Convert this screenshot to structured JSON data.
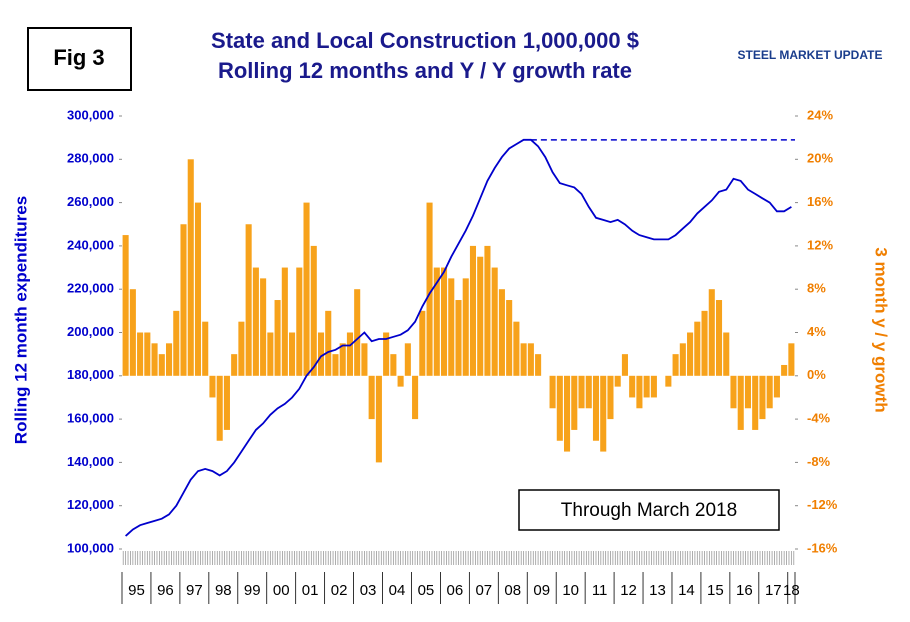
{
  "chart_data": {
    "type": "bar_line",
    "fig_label": "Fig 3",
    "title": "State and Local Construction 1,000,000 $",
    "subtitle": "Rolling 12 months and Y / Y growth rate",
    "logo": "STEEL MARKET UPDATE",
    "annotation": "Through March 2018",
    "y_label": "Rolling 12 month expenditures",
    "y2_label": "3 month y / y growth",
    "categories": [
      "95",
      null,
      null,
      null,
      "96",
      null,
      null,
      null,
      "97",
      null,
      null,
      null,
      "98",
      null,
      null,
      null,
      "99",
      null,
      null,
      null,
      "00",
      null,
      null,
      null,
      "01",
      null,
      null,
      null,
      "02",
      null,
      null,
      null,
      "03",
      null,
      null,
      null,
      "04",
      null,
      null,
      null,
      "05",
      null,
      null,
      null,
      "06",
      null,
      null,
      null,
      "07",
      null,
      null,
      null,
      "08",
      null,
      null,
      null,
      "09",
      null,
      null,
      null,
      "10",
      null,
      null,
      null,
      "11",
      null,
      null,
      null,
      "12",
      null,
      null,
      null,
      "13",
      null,
      null,
      null,
      "14",
      null,
      null,
      null,
      "15",
      null,
      null,
      null,
      "16",
      null,
      null,
      null,
      "17",
      null,
      null,
      null,
      "18"
    ],
    "series": [
      {
        "type": "bar",
        "axis": "y2",
        "color": "#f7a21b",
        "values": [
          13,
          8,
          4,
          4,
          3,
          2,
          3,
          6,
          14,
          20,
          16,
          5,
          -2,
          -6,
          -5,
          2,
          5,
          14,
          10,
          9,
          4,
          7,
          10,
          4,
          10,
          16,
          12,
          4,
          6,
          2,
          3,
          4,
          8,
          3,
          -4,
          -8,
          4,
          2,
          -1,
          3,
          -4,
          6,
          16,
          10,
          10,
          9,
          7,
          9,
          12,
          11,
          12,
          10,
          8,
          7,
          5,
          3,
          3,
          2,
          0,
          -3,
          -6,
          -7,
          -5,
          -3,
          -3,
          -6,
          -7,
          -4,
          -1,
          2,
          -2,
          -3,
          -2,
          -2,
          0,
          -1,
          2,
          3,
          4,
          5,
          6,
          8,
          7,
          4,
          -3,
          -5,
          -3,
          -5,
          -4,
          -3,
          -2,
          1,
          3
        ]
      },
      {
        "type": "line",
        "axis": "y",
        "color": "#0000cc",
        "values": [
          106000,
          109000,
          111000,
          112000,
          113000,
          114000,
          116000,
          120000,
          126000,
          132000,
          136000,
          137000,
          136000,
          134000,
          136000,
          140000,
          145000,
          150000,
          155000,
          158000,
          162000,
          165000,
          167000,
          170000,
          174000,
          180000,
          184000,
          189000,
          191000,
          192000,
          194000,
          194000,
          197000,
          200000,
          196000,
          197000,
          197000,
          198000,
          199000,
          201000,
          205000,
          212000,
          218000,
          223000,
          228000,
          235000,
          241000,
          247000,
          254000,
          262000,
          270000,
          276000,
          281000,
          285000,
          287000,
          289000,
          289000,
          286000,
          281000,
          274000,
          269000,
          268000,
          267000,
          264000,
          258000,
          253000,
          252000,
          251000,
          252000,
          250000,
          247000,
          245000,
          244000,
          243000,
          243000,
          243000,
          245000,
          248000,
          251000,
          255000,
          258000,
          261000,
          265000,
          266000,
          271000,
          270000,
          266000,
          264000,
          262000,
          260000,
          256000,
          256000,
          258000
        ]
      }
    ],
    "reference_line": {
      "value": 289000,
      "start_index": 56,
      "color": "#0000cc",
      "dashed": true
    },
    "ylim": [
      100000,
      300000
    ],
    "yticks": [
      {
        "value": 100000,
        "label": "100,000"
      },
      {
        "value": 120000,
        "label": "120,000"
      },
      {
        "value": 140000,
        "label": "140,000"
      },
      {
        "value": 160000,
        "label": "160,000"
      },
      {
        "value": 180000,
        "label": "180,000"
      },
      {
        "value": 200000,
        "label": "200,000"
      },
      {
        "value": 220000,
        "label": "220,000"
      },
      {
        "value": 240000,
        "label": "240,000"
      },
      {
        "value": 260000,
        "label": "260,000"
      },
      {
        "value": 280000,
        "label": "280,000"
      },
      {
        "value": 300000,
        "label": "300,000"
      }
    ],
    "y2lim": [
      -16,
      24
    ],
    "y2ticks": [
      {
        "value": -16,
        "label": "-16%"
      },
      {
        "value": -12,
        "label": "-12%"
      },
      {
        "value": -8,
        "label": "-8%"
      },
      {
        "value": -4,
        "label": "-4%"
      },
      {
        "value": 0,
        "label": "0%"
      },
      {
        "value": 4,
        "label": "4%"
      },
      {
        "value": 8,
        "label": "8%"
      },
      {
        "value": 12,
        "label": "12%"
      },
      {
        "value": 16,
        "label": "16%"
      },
      {
        "value": 20,
        "label": "20%"
      },
      {
        "value": 24,
        "label": "24%"
      }
    ],
    "grid": false
  }
}
